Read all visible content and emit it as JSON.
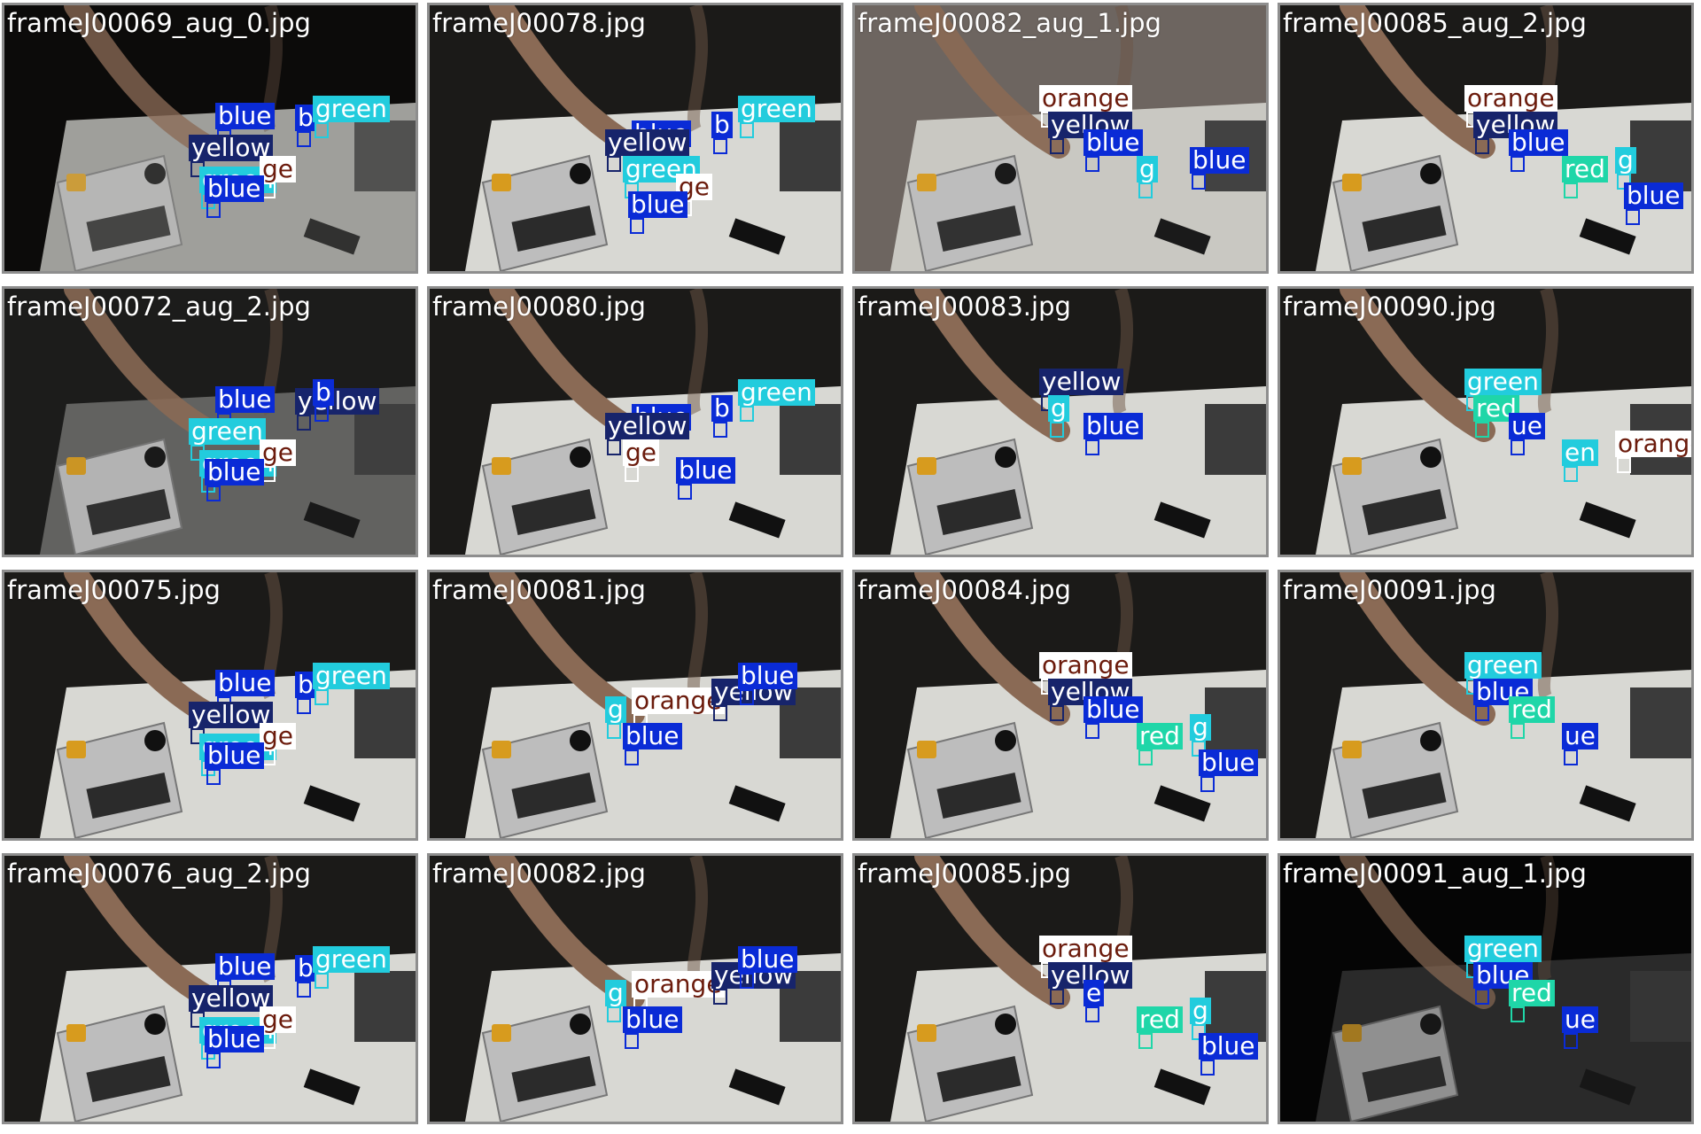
{
  "colors": {
    "blue": "#0a2bd6",
    "yellow": "#17246b",
    "green": "#22ccdd",
    "orange": "#ffffff",
    "red": "#1fd6a8",
    "orange_text": "#6b1b0c"
  },
  "tiles": [
    {
      "name": "frameJ00069_aug_0.jpg",
      "tone": "dark",
      "detections": [
        {
          "label": "blue",
          "cls": "blue"
        },
        {
          "label": "b",
          "cls": "blue"
        },
        {
          "label": "green",
          "cls": "green"
        },
        {
          "label": "yellow",
          "cls": "yellow"
        },
        {
          "label": "green",
          "cls": "green"
        },
        {
          "label": "ge",
          "cls": "orange"
        },
        {
          "label": "blue",
          "cls": "blue"
        }
      ]
    },
    {
      "name": "frameJ00078.jpg",
      "tone": "normal",
      "detections": [
        {
          "label": "blue",
          "cls": "blue"
        },
        {
          "label": "b",
          "cls": "blue"
        },
        {
          "label": "green",
          "cls": "green"
        },
        {
          "label": "yellow",
          "cls": "yellow"
        },
        {
          "label": "green",
          "cls": "green"
        },
        {
          "label": "ge",
          "cls": "orange"
        },
        {
          "label": "blue",
          "cls": "blue"
        }
      ]
    },
    {
      "name": "frameJ00082_aug_1.jpg",
      "tone": "noisy",
      "detections": [
        {
          "label": "orange",
          "cls": "orange"
        },
        {
          "label": "yellow",
          "cls": "yellow"
        },
        {
          "label": "blue",
          "cls": "blue"
        },
        {
          "label": "g",
          "cls": "green"
        },
        {
          "label": "blue",
          "cls": "blue"
        }
      ]
    },
    {
      "name": "frameJ00085_aug_2.jpg",
      "tone": "normal",
      "detections": [
        {
          "label": "orange",
          "cls": "orange"
        },
        {
          "label": "yellow",
          "cls": "yellow"
        },
        {
          "label": "blue",
          "cls": "blue"
        },
        {
          "label": "red",
          "cls": "red"
        },
        {
          "label": "g",
          "cls": "green"
        },
        {
          "label": "blue",
          "cls": "blue"
        }
      ]
    },
    {
      "name": "frameJ00072_aug_2.jpg",
      "tone": "noisy-dark",
      "detections": [
        {
          "label": "blue",
          "cls": "blue"
        },
        {
          "label": "yellow",
          "cls": "yellow"
        },
        {
          "label": "b",
          "cls": "blue"
        },
        {
          "label": "green",
          "cls": "green"
        },
        {
          "label": "green",
          "cls": "green"
        },
        {
          "label": "ge",
          "cls": "orange"
        },
        {
          "label": "blue",
          "cls": "blue"
        }
      ]
    },
    {
      "name": "frameJ00080.jpg",
      "tone": "normal",
      "detections": [
        {
          "label": "blue",
          "cls": "blue"
        },
        {
          "label": "b",
          "cls": "blue"
        },
        {
          "label": "green",
          "cls": "green"
        },
        {
          "label": "yellow",
          "cls": "yellow"
        },
        {
          "label": "ge",
          "cls": "orange"
        },
        {
          "label": "blue",
          "cls": "blue"
        }
      ]
    },
    {
      "name": "frameJ00083.jpg",
      "tone": "normal",
      "detections": [
        {
          "label": "yellow",
          "cls": "yellow"
        },
        {
          "label": "g",
          "cls": "green"
        },
        {
          "label": "blue",
          "cls": "blue"
        }
      ]
    },
    {
      "name": "frameJ00090.jpg",
      "tone": "normal",
      "detections": [
        {
          "label": "green",
          "cls": "green"
        },
        {
          "label": "red",
          "cls": "red"
        },
        {
          "label": "ue",
          "cls": "blue"
        },
        {
          "label": "en",
          "cls": "green"
        },
        {
          "label": "orange",
          "cls": "orange"
        }
      ]
    },
    {
      "name": "frameJ00075.jpg",
      "tone": "normal",
      "detections": [
        {
          "label": "blue",
          "cls": "blue"
        },
        {
          "label": "b",
          "cls": "blue"
        },
        {
          "label": "green",
          "cls": "green"
        },
        {
          "label": "yellow",
          "cls": "yellow"
        },
        {
          "label": "green",
          "cls": "green"
        },
        {
          "label": "ge",
          "cls": "orange"
        },
        {
          "label": "blue",
          "cls": "blue"
        }
      ]
    },
    {
      "name": "frameJ00081.jpg",
      "tone": "normal",
      "detections": [
        {
          "label": "orange",
          "cls": "orange"
        },
        {
          "label": "yellow",
          "cls": "yellow"
        },
        {
          "label": "blue",
          "cls": "blue"
        },
        {
          "label": "g",
          "cls": "green"
        },
        {
          "label": "blue",
          "cls": "blue"
        }
      ]
    },
    {
      "name": "frameJ00084.jpg",
      "tone": "normal",
      "detections": [
        {
          "label": "orange",
          "cls": "orange"
        },
        {
          "label": "yellow",
          "cls": "yellow"
        },
        {
          "label": "blue",
          "cls": "blue"
        },
        {
          "label": "red",
          "cls": "red"
        },
        {
          "label": "g",
          "cls": "green"
        },
        {
          "label": "blue",
          "cls": "blue"
        }
      ]
    },
    {
      "name": "frameJ00091.jpg",
      "tone": "normal",
      "detections": [
        {
          "label": "green",
          "cls": "green"
        },
        {
          "label": "blue",
          "cls": "blue"
        },
        {
          "label": "red",
          "cls": "red"
        },
        {
          "label": "ue",
          "cls": "blue"
        }
      ]
    },
    {
      "name": "frameJ00076_aug_2.jpg",
      "tone": "normal",
      "detections": [
        {
          "label": "blue",
          "cls": "blue"
        },
        {
          "label": "b",
          "cls": "blue"
        },
        {
          "label": "green",
          "cls": "green"
        },
        {
          "label": "yellow",
          "cls": "yellow"
        },
        {
          "label": "green",
          "cls": "green"
        },
        {
          "label": "ge",
          "cls": "orange"
        },
        {
          "label": "blue",
          "cls": "blue"
        }
      ]
    },
    {
      "name": "frameJ00082.jpg",
      "tone": "normal",
      "detections": [
        {
          "label": "orange",
          "cls": "orange"
        },
        {
          "label": "yellow",
          "cls": "yellow"
        },
        {
          "label": "blue",
          "cls": "blue"
        },
        {
          "label": "g",
          "cls": "green"
        },
        {
          "label": "blue",
          "cls": "blue"
        }
      ]
    },
    {
      "name": "frameJ00085.jpg",
      "tone": "normal",
      "detections": [
        {
          "label": "orange",
          "cls": "orange"
        },
        {
          "label": "yellow",
          "cls": "yellow"
        },
        {
          "label": "e",
          "cls": "blue"
        },
        {
          "label": "red",
          "cls": "red"
        },
        {
          "label": "g",
          "cls": "green"
        },
        {
          "label": "blue",
          "cls": "blue"
        }
      ]
    },
    {
      "name": "frameJ00091_aug_1.jpg",
      "tone": "very-dark",
      "detections": [
        {
          "label": "green",
          "cls": "green"
        },
        {
          "label": "blue",
          "cls": "blue"
        },
        {
          "label": "red",
          "cls": "red"
        },
        {
          "label": "ue",
          "cls": "blue"
        }
      ]
    }
  ]
}
